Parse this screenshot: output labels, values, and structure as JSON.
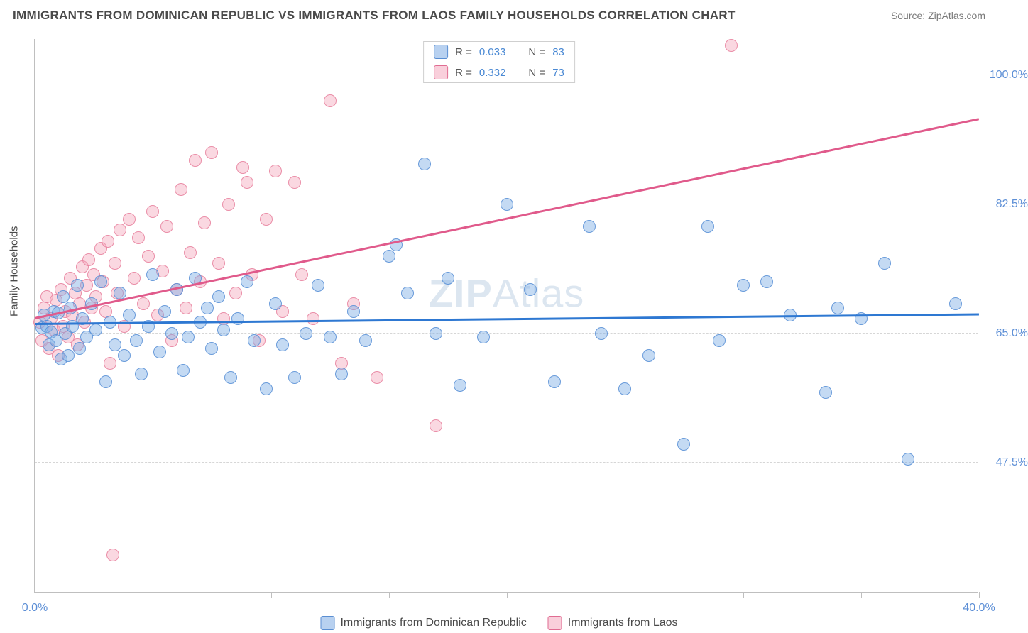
{
  "title": "IMMIGRANTS FROM DOMINICAN REPUBLIC VS IMMIGRANTS FROM LAOS FAMILY HOUSEHOLDS CORRELATION CHART",
  "source_label": "Source: ZipAtlas.com",
  "watermark_a": "ZIP",
  "watermark_b": "Atlas",
  "ylabel": "Family Households",
  "xaxis": {
    "min": 0.0,
    "max": 40.0,
    "ticks": [
      0,
      5,
      10,
      15,
      20,
      25,
      30,
      35,
      40
    ],
    "tick_labels": {
      "0": "0.0%",
      "40": "40.0%"
    }
  },
  "yaxis": {
    "min": 30.0,
    "max": 105.0,
    "gridlines": [
      47.5,
      65.0,
      82.5,
      100.0
    ],
    "grid_labels": [
      "47.5%",
      "65.0%",
      "82.5%",
      "100.0%"
    ]
  },
  "legend_stats": [
    {
      "series": "a",
      "r_label": "R =",
      "r": "0.033",
      "n_label": "N =",
      "n": "83"
    },
    {
      "series": "b",
      "r_label": "R =",
      "r": "0.332",
      "n_label": "N =",
      "n": "73"
    }
  ],
  "bottom_legend": [
    {
      "series": "a",
      "label": "Immigrants from Dominican Republic"
    },
    {
      "series": "b",
      "label": "Immigrants from Laos"
    }
  ],
  "colors": {
    "series_a_fill": "rgba(125,172,228,0.45)",
    "series_a_stroke": "#588fd6",
    "series_b_fill": "rgba(244,168,189,0.45)",
    "series_b_stroke": "#e7809e",
    "trend_a": "#2e78d2",
    "trend_b": "#e05a8b",
    "axis_text": "#5d8fd6",
    "grid": "#d6d6d6"
  },
  "trend_lines": {
    "a": {
      "x1": 0.0,
      "y1": 66.2,
      "x2": 40.0,
      "y2": 67.5
    },
    "b": {
      "x1": 0.0,
      "y1": 67.0,
      "x2": 40.0,
      "y2": 94.0
    }
  },
  "series_a": [
    [
      0.3,
      65.8
    ],
    [
      0.4,
      67.5
    ],
    [
      0.5,
      66.0
    ],
    [
      0.6,
      63.5
    ],
    [
      0.7,
      65.2
    ],
    [
      0.8,
      68.0
    ],
    [
      0.9,
      64.0
    ],
    [
      1.0,
      67.8
    ],
    [
      1.1,
      61.5
    ],
    [
      1.2,
      70.0
    ],
    [
      1.3,
      65.0
    ],
    [
      1.4,
      62.0
    ],
    [
      1.5,
      68.5
    ],
    [
      1.6,
      66.0
    ],
    [
      1.8,
      71.5
    ],
    [
      1.9,
      63.0
    ],
    [
      2.0,
      67.0
    ],
    [
      2.2,
      64.5
    ],
    [
      2.4,
      69.0
    ],
    [
      2.6,
      65.5
    ],
    [
      2.8,
      72.0
    ],
    [
      3.0,
      58.5
    ],
    [
      3.2,
      66.5
    ],
    [
      3.4,
      63.5
    ],
    [
      3.6,
      70.5
    ],
    [
      3.8,
      62.0
    ],
    [
      4.0,
      67.5
    ],
    [
      4.3,
      64.0
    ],
    [
      4.5,
      59.5
    ],
    [
      4.8,
      66.0
    ],
    [
      5.0,
      73.0
    ],
    [
      5.3,
      62.5
    ],
    [
      5.5,
      68.0
    ],
    [
      5.8,
      65.0
    ],
    [
      6.0,
      71.0
    ],
    [
      6.3,
      60.0
    ],
    [
      6.5,
      64.5
    ],
    [
      6.8,
      72.5
    ],
    [
      7.0,
      66.5
    ],
    [
      7.3,
      68.5
    ],
    [
      7.5,
      63.0
    ],
    [
      7.8,
      70.0
    ],
    [
      8.0,
      65.5
    ],
    [
      8.3,
      59.0
    ],
    [
      8.6,
      67.0
    ],
    [
      9.0,
      72.0
    ],
    [
      9.3,
      64.0
    ],
    [
      9.8,
      57.5
    ],
    [
      10.2,
      69.0
    ],
    [
      10.5,
      63.5
    ],
    [
      11.0,
      59.0
    ],
    [
      11.5,
      65.0
    ],
    [
      12.0,
      71.5
    ],
    [
      12.5,
      64.5
    ],
    [
      13.0,
      59.5
    ],
    [
      13.5,
      68.0
    ],
    [
      14.0,
      64.0
    ],
    [
      15.0,
      75.5
    ],
    [
      15.3,
      77.0
    ],
    [
      15.8,
      70.5
    ],
    [
      16.5,
      88.0
    ],
    [
      17.0,
      65.0
    ],
    [
      17.5,
      72.5
    ],
    [
      18.0,
      58.0
    ],
    [
      19.0,
      64.5
    ],
    [
      20.0,
      82.5
    ],
    [
      21.0,
      71.0
    ],
    [
      22.0,
      58.5
    ],
    [
      23.5,
      79.5
    ],
    [
      24.0,
      65.0
    ],
    [
      25.0,
      57.5
    ],
    [
      26.0,
      62.0
    ],
    [
      27.5,
      50.0
    ],
    [
      28.5,
      79.5
    ],
    [
      29.0,
      64.0
    ],
    [
      30.0,
      71.5
    ],
    [
      31.0,
      72.0
    ],
    [
      32.0,
      67.5
    ],
    [
      33.5,
      57.0
    ],
    [
      34.0,
      68.5
    ],
    [
      35.0,
      67.0
    ],
    [
      36.0,
      74.5
    ],
    [
      37.0,
      48.0
    ],
    [
      39.0,
      69.0
    ]
  ],
  "series_b": [
    [
      0.2,
      66.5
    ],
    [
      0.3,
      64.0
    ],
    [
      0.4,
      68.5
    ],
    [
      0.5,
      70.0
    ],
    [
      0.6,
      63.0
    ],
    [
      0.7,
      67.0
    ],
    [
      0.8,
      65.5
    ],
    [
      0.9,
      69.5
    ],
    [
      1.0,
      62.0
    ],
    [
      1.1,
      71.0
    ],
    [
      1.2,
      66.0
    ],
    [
      1.3,
      68.0
    ],
    [
      1.4,
      64.5
    ],
    [
      1.5,
      72.5
    ],
    [
      1.6,
      67.5
    ],
    [
      1.7,
      70.5
    ],
    [
      1.8,
      63.5
    ],
    [
      1.9,
      69.0
    ],
    [
      2.0,
      74.0
    ],
    [
      2.1,
      66.5
    ],
    [
      2.2,
      71.5
    ],
    [
      2.3,
      75.0
    ],
    [
      2.4,
      68.5
    ],
    [
      2.5,
      73.0
    ],
    [
      2.6,
      70.0
    ],
    [
      2.8,
      76.5
    ],
    [
      2.9,
      72.0
    ],
    [
      3.0,
      68.0
    ],
    [
      3.1,
      77.5
    ],
    [
      3.2,
      61.0
    ],
    [
      3.4,
      74.5
    ],
    [
      3.5,
      70.5
    ],
    [
      3.6,
      79.0
    ],
    [
      3.8,
      66.0
    ],
    [
      4.0,
      80.5
    ],
    [
      4.2,
      72.5
    ],
    [
      4.4,
      78.0
    ],
    [
      4.6,
      69.0
    ],
    [
      4.8,
      75.5
    ],
    [
      5.0,
      81.5
    ],
    [
      5.2,
      67.5
    ],
    [
      5.4,
      73.5
    ],
    [
      5.6,
      79.5
    ],
    [
      5.8,
      64.0
    ],
    [
      6.0,
      71.0
    ],
    [
      6.2,
      84.5
    ],
    [
      6.4,
      68.5
    ],
    [
      6.6,
      76.0
    ],
    [
      6.8,
      88.5
    ],
    [
      7.0,
      72.0
    ],
    [
      7.2,
      80.0
    ],
    [
      7.5,
      89.5
    ],
    [
      7.8,
      74.5
    ],
    [
      8.0,
      67.0
    ],
    [
      8.2,
      82.5
    ],
    [
      8.5,
      70.5
    ],
    [
      8.8,
      87.5
    ],
    [
      9.0,
      85.5
    ],
    [
      9.2,
      73.0
    ],
    [
      9.5,
      64.0
    ],
    [
      9.8,
      80.5
    ],
    [
      10.2,
      87.0
    ],
    [
      10.5,
      68.0
    ],
    [
      11.0,
      85.5
    ],
    [
      11.3,
      73.0
    ],
    [
      11.8,
      67.0
    ],
    [
      12.5,
      96.5
    ],
    [
      13.0,
      61.0
    ],
    [
      13.5,
      69.0
    ],
    [
      14.5,
      59.0
    ],
    [
      17.0,
      52.5
    ],
    [
      3.3,
      35.0
    ],
    [
      29.5,
      104.0
    ]
  ]
}
